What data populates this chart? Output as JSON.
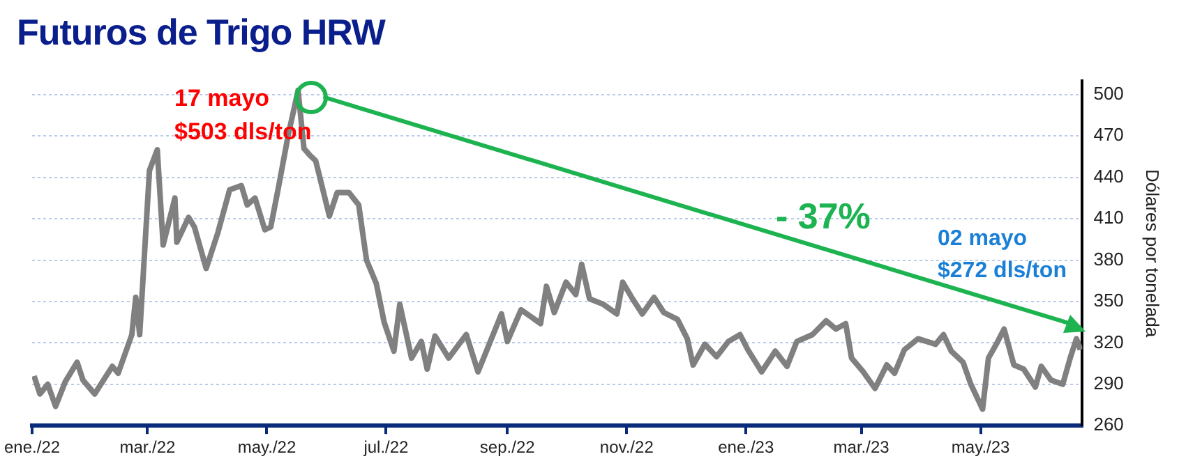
{
  "chart_data": {
    "type": "line",
    "title": "Futuros de Trigo HRW",
    "ylabel": "Dólares por tonelada",
    "annotations": [
      "17 mayo",
      "$503 dls/ton",
      "- 37%",
      "02 mayo",
      "$272 dls/ton"
    ],
    "x": [
      "2022-01-02",
      "2022-01-05",
      "2022-01-09",
      "2022-01-13",
      "2022-01-18",
      "2022-01-24",
      "2022-01-27",
      "2022-02-02",
      "2022-02-11",
      "2022-02-14",
      "2022-02-21",
      "2022-02-23",
      "2022-02-25",
      "2022-03-02",
      "2022-03-06",
      "2022-03-09",
      "2022-03-15",
      "2022-03-16",
      "2022-03-22",
      "2022-03-25",
      "2022-03-31",
      "2022-04-06",
      "2022-04-12",
      "2022-04-18",
      "2022-04-21",
      "2022-04-25",
      "2022-04-30",
      "2022-05-03",
      "2022-05-07",
      "2022-05-12",
      "2022-05-17",
      "2022-05-20",
      "2022-05-23",
      "2022-05-26",
      "2022-06-02",
      "2022-06-06",
      "2022-06-12",
      "2022-06-17",
      "2022-06-21",
      "2022-06-26",
      "2022-06-30",
      "2022-07-05",
      "2022-07-08",
      "2022-07-14",
      "2022-07-19",
      "2022-07-22",
      "2022-07-26",
      "2022-08-02",
      "2022-08-11",
      "2022-08-17",
      "2022-08-29",
      "2022-09-01",
      "2022-09-08",
      "2022-09-18",
      "2022-09-21",
      "2022-09-25",
      "2022-10-01",
      "2022-10-06",
      "2022-10-09",
      "2022-10-13",
      "2022-10-20",
      "2022-10-27",
      "2022-10-30",
      "2022-11-04",
      "2022-11-09",
      "2022-11-15",
      "2022-11-20",
      "2022-11-27",
      "2022-12-02",
      "2022-12-05",
      "2022-12-11",
      "2022-12-17",
      "2022-12-23",
      "2022-12-29",
      "2023-01-02",
      "2023-01-09",
      "2023-01-16",
      "2023-01-22",
      "2023-01-27",
      "2023-02-04",
      "2023-02-11",
      "2023-02-16",
      "2023-02-21",
      "2023-02-24",
      "2023-03-02",
      "2023-03-08",
      "2023-03-14",
      "2023-03-18",
      "2023-03-23",
      "2023-03-30",
      "2023-04-08",
      "2023-04-12",
      "2023-04-16",
      "2023-04-22",
      "2023-04-26",
      "2023-05-02",
      "2023-05-05",
      "2023-05-09",
      "2023-05-13",
      "2023-05-18",
      "2023-05-23",
      "2023-05-29",
      "2023-06-01",
      "2023-06-06",
      "2023-06-12",
      "2023-06-16",
      "2023-06-19",
      "2023-06-21"
    ],
    "series": [
      {
        "color": "#808080",
        "values": [
          296,
          283,
          290,
          274,
          292,
          306,
          293,
          283,
          303,
          298,
          326,
          353,
          326,
          445,
          460,
          391,
          425,
          393,
          411,
          404,
          374,
          400,
          431,
          434,
          420,
          425,
          402,
          404,
          433,
          471,
          503,
          461,
          456,
          452,
          412,
          429,
          429,
          420,
          380,
          363,
          335,
          314,
          348,
          309,
          321,
          301,
          325,
          309,
          326,
          299,
          341,
          321,
          344,
          334,
          361,
          342,
          364,
          355,
          377,
          352,
          348,
          341,
          364,
          352,
          341,
          353,
          342,
          337,
          323,
          304,
          319,
          310,
          321,
          326,
          315,
          299,
          314,
          303,
          321,
          326,
          336,
          330,
          334,
          309,
          299,
          287,
          304,
          298,
          315,
          323,
          319,
          326,
          314,
          306,
          290,
          272,
          309,
          319,
          330,
          304,
          301,
          288,
          303,
          293,
          290,
          310,
          323,
          315
        ]
      }
    ],
    "xlim": [
      "2022-01-01",
      "2023-06-22"
    ],
    "xticks": [
      {
        "value": "2022-01-01",
        "label": "ene./22"
      },
      {
        "value": "2022-03-01",
        "label": "mar./22"
      },
      {
        "value": "2022-05-01",
        "label": "may./22"
      },
      {
        "value": "2022-07-01",
        "label": "jul./22"
      },
      {
        "value": "2022-09-01",
        "label": "sep./22"
      },
      {
        "value": "2022-11-01",
        "label": "nov./22"
      },
      {
        "value": "2023-01-01",
        "label": "ene./23"
      },
      {
        "value": "2023-03-01",
        "label": "mar./23"
      },
      {
        "value": "2023-05-01",
        "label": "may./23"
      }
    ],
    "ylim": [
      260,
      510
    ],
    "yticks": [
      260,
      290,
      320,
      350,
      380,
      410,
      440,
      470,
      500
    ],
    "grid": "y",
    "legend": false,
    "marker": "none",
    "line_style": "solid"
  }
}
